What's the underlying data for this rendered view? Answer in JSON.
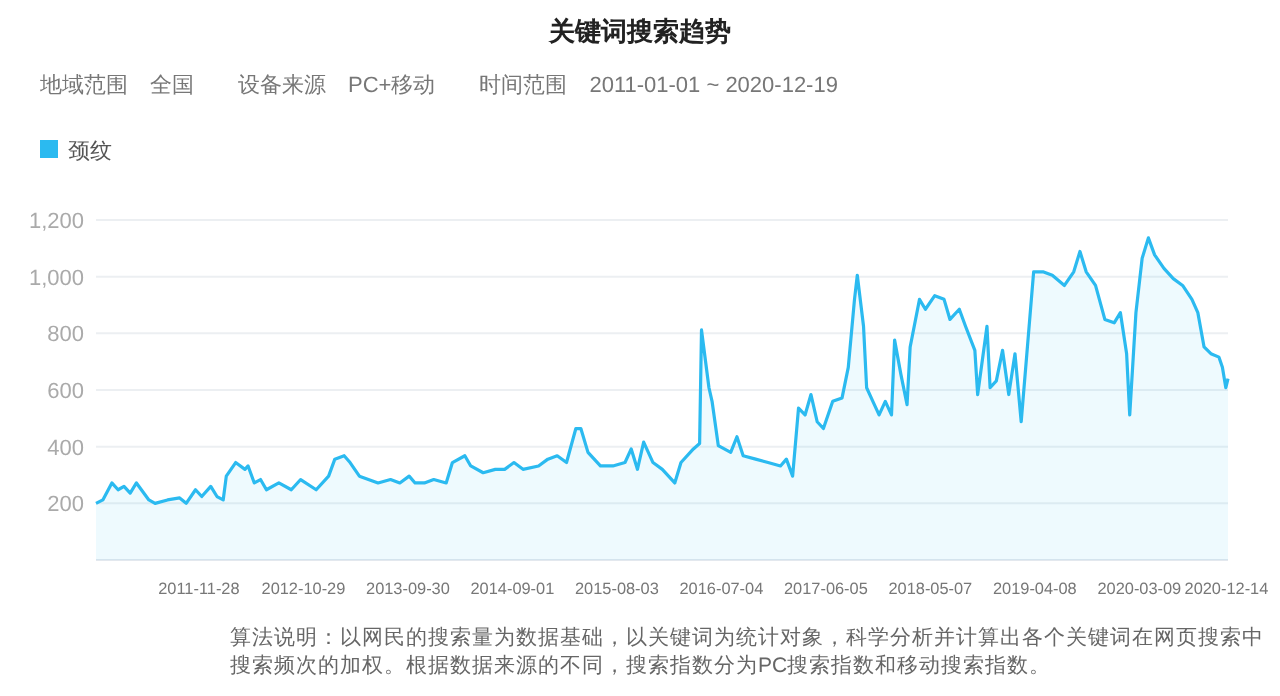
{
  "chart_data": {
    "type": "area",
    "title": "关键词搜索趋势",
    "subtitle": "地域范围　全国　　设备来源　PC+移动　　时间范围　2011-01-01 ~ 2020-12-19",
    "legend": "top left",
    "grid": "y",
    "xlim": [
      "2011-01-01",
      "2020-12-19"
    ],
    "xticks": [
      "2011-11-28",
      "2012-10-29",
      "2013-09-30",
      "2014-09-01",
      "2015-08-03",
      "2016-07-04",
      "2017-06-05",
      "2018-05-07",
      "2019-04-08",
      "2020-03-09",
      "2020-12-14"
    ],
    "ylim": [
      0,
      1200
    ],
    "yticks": [
      200,
      400,
      600,
      800,
      {
        "value": 1000,
        "label": "1,000"
      },
      {
        "value": 1200,
        "label": "1,200"
      }
    ],
    "annotations": [
      "算法说明：以网民的搜索量为数据基础，以关键词为统计对象，科学分析并计算出各个关键词在网页搜索中搜索频次的加权。根据数据来源的不同，搜索指数分为PC搜索指数和移动搜索指数。"
    ],
    "series": [
      {
        "name": "颈纹",
        "color": "#2bbaf0",
        "x": [
          "2011-01-01",
          "2011-01-23",
          "2011-02-21",
          "2011-03-13",
          "2011-04-01",
          "2011-04-21",
          "2011-05-11",
          "2011-06-20",
          "2011-07-10",
          "2011-08-19",
          "2011-09-27",
          "2011-10-18",
          "2011-11-17",
          "2011-12-07",
          "2012-01-05",
          "2012-01-25",
          "2012-02-14",
          "2012-02-24",
          "2012-03-25",
          "2012-04-24",
          "2012-05-04",
          "2012-05-24",
          "2012-06-13",
          "2012-07-02",
          "2012-08-11",
          "2012-09-20",
          "2012-10-20",
          "2012-12-09",
          "2013-01-18",
          "2013-02-07",
          "2013-03-09",
          "2013-03-28",
          "2013-04-27",
          "2013-06-26",
          "2013-08-05",
          "2013-09-04",
          "2013-10-04",
          "2013-10-23",
          "2013-11-22",
          "2013-12-22",
          "2014-01-31",
          "2014-02-20",
          "2014-04-01",
          "2014-04-20",
          "2014-05-30",
          "2014-07-08",
          "2014-08-07",
          "2014-09-06",
          "2014-10-05",
          "2014-11-24",
          "2014-12-24",
          "2015-01-23",
          "2015-02-22",
          "2015-03-24",
          "2015-04-09",
          "2015-05-02",
          "2015-06-11",
          "2015-07-21",
          "2015-08-29",
          "2015-09-18",
          "2015-10-08",
          "2015-10-28",
          "2015-11-27",
          "2015-12-27",
          "2016-02-05",
          "2016-02-25",
          "2016-04-05",
          "2016-04-25",
          "2016-05-01",
          "2016-05-25",
          "2016-06-04",
          "2016-06-24",
          "2016-08-03",
          "2016-08-23",
          "2016-09-12",
          "2016-10-22",
          "2016-12-01",
          "2017-01-10",
          "2017-01-29",
          "2017-02-18",
          "2017-03-09",
          "2017-03-30",
          "2017-04-18",
          "2017-05-08",
          "2017-05-28",
          "2017-06-27",
          "2017-07-27",
          "2017-08-16",
          "2017-09-05",
          "2017-09-14",
          "2017-10-04",
          "2017-10-14",
          "2017-11-03",
          "2017-11-23",
          "2017-12-13",
          "2018-01-02",
          "2018-01-12",
          "2018-02-01",
          "2018-02-21",
          "2018-03-03",
          "2018-04-02",
          "2018-04-21",
          "2018-05-21",
          "2018-06-20",
          "2018-07-09",
          "2018-08-08",
          "2018-08-28",
          "2018-09-27",
          "2018-10-06",
          "2018-11-05",
          "2018-11-15",
          "2018-12-05",
          "2018-12-25",
          "2019-01-14",
          "2019-02-03",
          "2019-02-23",
          "2019-03-15",
          "2019-04-04",
          "2019-05-04",
          "2019-06-03",
          "2019-07-12",
          "2019-08-11",
          "2019-08-31",
          "2019-09-20",
          "2019-10-20",
          "2019-11-19",
          "2019-12-19",
          "2020-01-08",
          "2020-01-28",
          "2020-02-07",
          "2020-02-27",
          "2020-03-18",
          "2020-04-07",
          "2020-04-27",
          "2020-05-27",
          "2020-06-26",
          "2020-07-26",
          "2020-08-25",
          "2020-09-13",
          "2020-10-03",
          "2020-10-25",
          "2020-11-20",
          "2020-12-01",
          "2020-12-12",
          "2020-12-19"
        ],
        "values": [
          200,
          212,
          272,
          248,
          260,
          236,
          272,
          212,
          200,
          212,
          219,
          200,
          248,
          224,
          260,
          224,
          212,
          296,
          344,
          320,
          332,
          272,
          284,
          248,
          272,
          248,
          284,
          248,
          296,
          356,
          368,
          344,
          296,
          272,
          284,
          272,
          296,
          272,
          272,
          284,
          272,
          344,
          368,
          332,
          308,
          320,
          320,
          344,
          320,
          332,
          356,
          368,
          344,
          464,
          464,
          380,
          332,
          332,
          344,
          392,
          320,
          416,
          344,
          320,
          272,
          344,
          392,
          411,
          812,
          608,
          560,
          404,
          380,
          435,
          368,
          356,
          344,
          332,
          356,
          296,
          536,
          512,
          584,
          488,
          464,
          560,
          572,
          680,
          920,
          1005,
          825,
          608,
          560,
          512,
          560,
          512,
          776,
          656,
          548,
          752,
          920,
          885,
          933,
          920,
          849,
          885,
          825,
          740,
          584,
          825,
          608,
          632,
          740,
          584,
          728,
          488,
          752,
          1017,
          1017,
          1005,
          969,
          1017,
          1089,
          1017,
          969,
          849,
          837,
          873,
          728,
          512,
          873,
          1065,
          1137,
          1077,
          1029,
          993,
          969,
          920,
          873,
          752,
          728,
          716,
          680,
          608,
          640
        ]
      }
    ]
  }
}
